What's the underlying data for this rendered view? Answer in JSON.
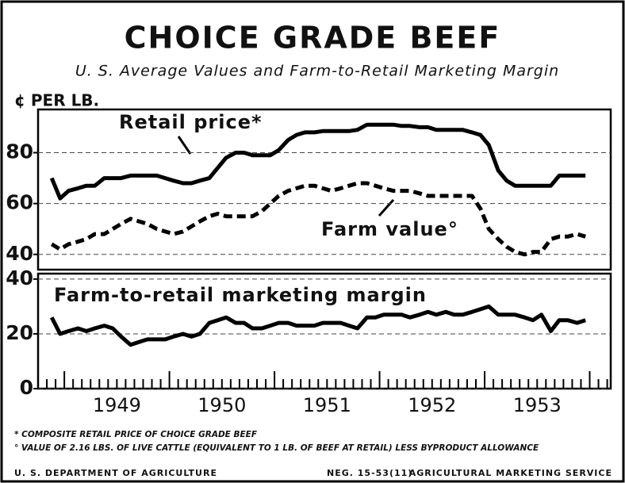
{
  "chart_data": [
    {
      "type": "line",
      "title": "CHOICE GRADE BEEF",
      "subtitle": "U. S. Average Values and Farm-to-Retail Marketing Margin",
      "ylabel": "¢ PER LB.",
      "x": [
        1948.88,
        1948.96,
        1949.04,
        1949.13,
        1949.21,
        1949.29,
        1949.38,
        1949.46,
        1949.54,
        1949.63,
        1949.71,
        1949.79,
        1949.88,
        1949.96,
        1950.04,
        1950.13,
        1950.21,
        1950.29,
        1950.38,
        1950.46,
        1950.54,
        1950.63,
        1950.71,
        1950.79,
        1950.88,
        1950.96,
        1951.04,
        1951.13,
        1951.21,
        1951.29,
        1951.38,
        1951.46,
        1951.54,
        1951.63,
        1951.71,
        1951.79,
        1951.88,
        1951.96,
        1952.04,
        1952.13,
        1952.21,
        1952.29,
        1952.38,
        1952.46,
        1952.54,
        1952.63,
        1952.71,
        1952.79,
        1952.88,
        1952.96,
        1953.04,
        1953.13,
        1953.21,
        1953.29,
        1953.38,
        1953.46,
        1953.54,
        1953.63,
        1953.71,
        1953.79,
        1953.88,
        1953.96
      ],
      "xlim": [
        1948.75,
        1954.2
      ],
      "ylim": [
        34,
        97
      ],
      "yticks": [
        40,
        60,
        80
      ],
      "grid": true,
      "series": [
        {
          "name": "Retail price*",
          "color": "#000000",
          "style": "solid",
          "values": [
            70,
            62,
            65,
            66,
            67,
            67,
            70,
            70,
            70,
            71,
            71,
            71,
            71,
            70,
            69,
            68,
            68,
            69,
            70,
            74,
            78,
            80,
            80,
            79,
            79,
            79,
            81,
            85,
            87,
            88,
            88,
            88.5,
            88.5,
            88.5,
            88.5,
            89,
            91,
            91,
            91,
            91,
            90.5,
            90.5,
            90,
            90,
            89,
            89,
            89,
            89,
            88,
            87,
            83,
            73,
            69,
            67,
            67,
            67,
            67,
            67,
            71,
            71,
            71,
            71
          ]
        },
        {
          "name": "Farm value°",
          "color": "#000000",
          "style": "dashed",
          "values": [
            44,
            42,
            44,
            45,
            46,
            48,
            48,
            50,
            52,
            54,
            53,
            52,
            50,
            49,
            48,
            49,
            51,
            53,
            55,
            56,
            55,
            55,
            55,
            55,
            57,
            60,
            63,
            65,
            66,
            67,
            67,
            66,
            65,
            66,
            67,
            68,
            68,
            67,
            66,
            65,
            65,
            65,
            64,
            63,
            63,
            63,
            63,
            63,
            63,
            58,
            50,
            46,
            43,
            41,
            40,
            41,
            41,
            46,
            47,
            47,
            48,
            47
          ]
        }
      ]
    },
    {
      "type": "line",
      "x": [
        1948.88,
        1948.96,
        1949.04,
        1949.13,
        1949.21,
        1949.29,
        1949.38,
        1949.46,
        1949.54,
        1949.63,
        1949.71,
        1949.79,
        1949.88,
        1949.96,
        1950.04,
        1950.13,
        1950.21,
        1950.29,
        1950.38,
        1950.46,
        1950.54,
        1950.63,
        1950.71,
        1950.79,
        1950.88,
        1950.96,
        1951.04,
        1951.13,
        1951.21,
        1951.29,
        1951.38,
        1951.46,
        1951.54,
        1951.63,
        1951.71,
        1951.79,
        1951.88,
        1951.96,
        1952.04,
        1952.13,
        1952.21,
        1952.29,
        1952.38,
        1952.46,
        1952.54,
        1952.63,
        1952.71,
        1952.79,
        1952.88,
        1952.96,
        1953.04,
        1953.13,
        1953.21,
        1953.29,
        1953.38,
        1953.46,
        1953.54,
        1953.63,
        1953.71,
        1953.79,
        1953.88,
        1953.96
      ],
      "xlim": [
        1948.75,
        1954.2
      ],
      "ylim": [
        0,
        42
      ],
      "yticks": [
        0,
        20,
        40
      ],
      "grid": true,
      "xticks": [
        {
          "value": 1949.5,
          "label": "1949"
        },
        {
          "value": 1950.5,
          "label": "1950"
        },
        {
          "value": 1951.5,
          "label": "1951"
        },
        {
          "value": 1952.5,
          "label": "1952"
        },
        {
          "value": 1953.5,
          "label": "1953"
        }
      ],
      "series": [
        {
          "name": "Farm-to-retail marketing margin",
          "color": "#000000",
          "style": "solid",
          "values": [
            26,
            20,
            21,
            22,
            21,
            22,
            23,
            22,
            19,
            16,
            17,
            18,
            18,
            18,
            19,
            20,
            19,
            20,
            24,
            25,
            26,
            24,
            24,
            22,
            22,
            23,
            24,
            24,
            23,
            23,
            23,
            24,
            24,
            24,
            23,
            22,
            26,
            26,
            27,
            27,
            27,
            26,
            27,
            28,
            27,
            28,
            27,
            27,
            28,
            29,
            30,
            27,
            27,
            27,
            26,
            25,
            27,
            21,
            25,
            25,
            24,
            25
          ]
        }
      ]
    }
  ],
  "notes": [
    "* COMPOSITE RETAIL PRICE OF CHOICE GRADE BEEF",
    "° VALUE OF 2.16 LBS. OF LIVE CATTLE (EQUIVALENT TO 1 LB. OF BEEF AT RETAIL) LESS BYPRODUCT ALLOWANCE"
  ],
  "footer": {
    "left": "U. S. DEPARTMENT OF AGRICULTURE",
    "neg": "NEG. 15-53(11)",
    "agency": "AGRICULTURAL MARKETING SERVICE"
  }
}
